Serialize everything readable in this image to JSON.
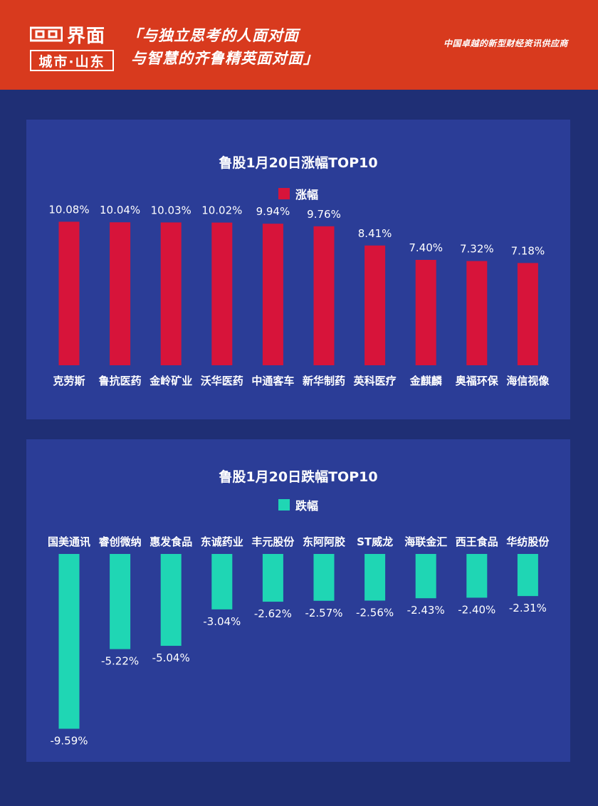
{
  "header": {
    "logo_main": "界面",
    "logo_sub": "城市·山东",
    "slogan_line1": "「与独立思考的人面对面",
    "slogan_line2": "与智慧的齐鲁精英面对面」",
    "tagline": "中国卓越的新型财经资讯供应商"
  },
  "colors": {
    "header_bg": "#d83a1e",
    "page_bg": "#1f2f75",
    "panel_bg": "#2b3d97",
    "gain_bar": "#d7143a",
    "loss_bar": "#1fd6b4"
  },
  "chart_data": [
    {
      "type": "bar",
      "title": "鲁股1月20日涨幅TOP10",
      "legend": "涨幅",
      "legend_placement": "top-center",
      "categories": [
        "克劳斯",
        "鲁抗医药",
        "金岭矿业",
        "沃华医药",
        "中通客车",
        "新华制药",
        "英科医疗",
        "金麒麟",
        "奥福环保",
        "海信视像"
      ],
      "values": [
        10.08,
        10.04,
        10.03,
        10.02,
        9.94,
        9.76,
        8.41,
        7.4,
        7.32,
        7.18
      ],
      "labels": [
        "10.08%",
        "10.04%",
        "10.03%",
        "10.02%",
        "9.94%",
        "9.76%",
        "8.41%",
        "7.40%",
        "7.32%",
        "7.18%"
      ],
      "unit": "%",
      "ylim": [
        0,
        14
      ],
      "grid": false
    },
    {
      "type": "bar",
      "title": "鲁股1月20日跌幅TOP10",
      "legend": "跌幅",
      "legend_placement": "top-center",
      "categories": [
        "国美通讯",
        "睿创微纳",
        "惠发食品",
        "东诚药业",
        "丰元股份",
        "东阿阿胶",
        "ST威龙",
        "海联金汇",
        "西王食品",
        "华纺股份"
      ],
      "values": [
        -9.59,
        -5.22,
        -5.04,
        -3.04,
        -2.62,
        -2.57,
        -2.56,
        -2.43,
        -2.4,
        -2.31
      ],
      "labels": [
        "-9.59%",
        "-5.22%",
        "-5.04%",
        "-3.04%",
        "-2.62%",
        "-2.57%",
        "-2.56%",
        "-2.43%",
        "-2.40%",
        "-2.31%"
      ],
      "unit": "%",
      "ylim": [
        -10,
        0
      ],
      "grid": false
    }
  ]
}
